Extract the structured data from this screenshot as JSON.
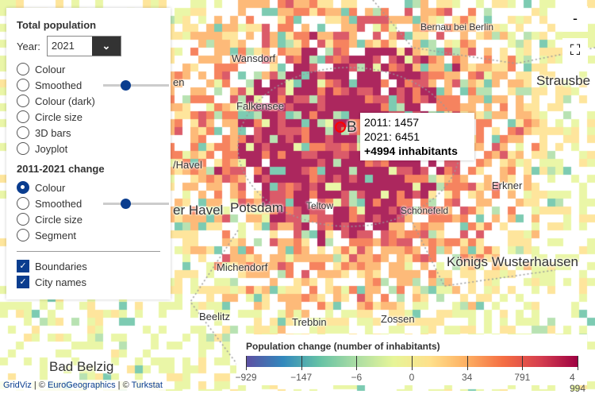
{
  "map": {
    "center_city": "Berlin",
    "palette": [
      "#5e4fa2",
      "#3288bd",
      "#66c2a5",
      "#abdda4",
      "#e6f598",
      "#fee08b",
      "#fdae61",
      "#f46d43",
      "#d53e4f",
      "#9e0142"
    ]
  },
  "cities": [
    {
      "name": "Bernau bei Berlin"
    },
    {
      "name": "Wansdorf"
    },
    {
      "name": "Strausbe"
    },
    {
      "name": "Falkensee"
    },
    {
      "name": "B"
    },
    {
      "name": "/Havel"
    },
    {
      "name": "Erkner"
    },
    {
      "name": "er Havel"
    },
    {
      "name": "Potsdam"
    },
    {
      "name": "Teltow"
    },
    {
      "name": "Schönefeld"
    },
    {
      "name": "Königs Wusterhausen"
    },
    {
      "name": "Michendorf"
    },
    {
      "name": "Beelitz"
    },
    {
      "name": "Trebbin"
    },
    {
      "name": "Zossen"
    },
    {
      "name": "Bad Belzig"
    },
    {
      "name": "en"
    }
  ],
  "panel": {
    "total_title": "Total population",
    "year_label": "Year:",
    "year_value": "2021",
    "total_options": [
      "Colour",
      "Smoothed",
      "Colour (dark)",
      "Circle size",
      "3D bars",
      "Joyplot"
    ],
    "change_title": "2011-2021 change",
    "change_options": [
      "Colour",
      "Smoothed",
      "Circle size",
      "Segment"
    ],
    "change_selected": "Colour",
    "checkboxes": [
      {
        "label": "Boundaries",
        "checked": true
      },
      {
        "label": "City names",
        "checked": true
      }
    ]
  },
  "controls": {
    "zoom_out": "-",
    "fullscreen": "⛶"
  },
  "tooltip": {
    "line1": "2011: 1457",
    "line2": "2021: 6451",
    "line3": "+4994 inhabitants"
  },
  "legend": {
    "title": "Population change (number of inhabitants)",
    "ticks": [
      "−929",
      "−147",
      "−6",
      "0",
      "34",
      "791",
      "4 994"
    ]
  },
  "attribution": {
    "a": "GridViz",
    "b": "EuroGeographics",
    "c": "Turkstat",
    "sep": " | © "
  }
}
